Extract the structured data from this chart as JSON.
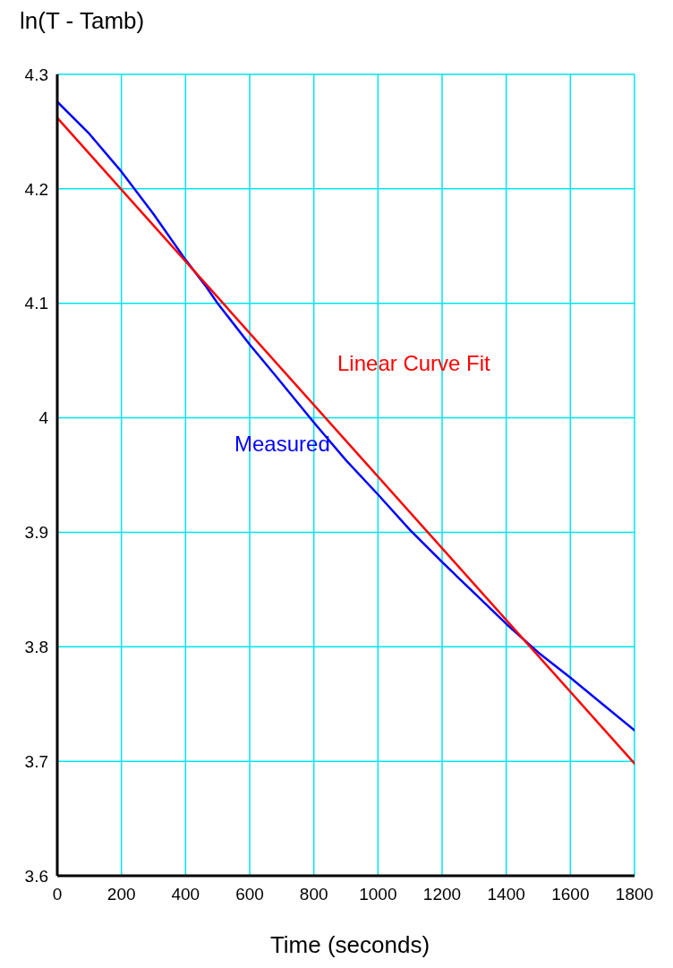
{
  "chart_data": {
    "type": "line",
    "ylabel": "ln(T - Tamb)",
    "xlabel": "Time (seconds)",
    "series": [
      {
        "name": "Measured",
        "color": "#0000ff",
        "x": [
          0,
          100,
          200,
          300,
          400,
          463,
          500,
          600,
          680,
          800,
          900,
          1000,
          1100,
          1200,
          1300,
          1400,
          1500,
          1600,
          1700,
          1800
        ],
        "values": [
          4.276,
          4.248,
          4.215,
          4.178,
          4.138,
          4.115,
          4.1,
          4.064,
          4.037,
          3.996,
          3.963,
          3.933,
          3.902,
          3.874,
          3.847,
          3.82,
          3.795,
          3.773,
          3.75,
          3.727
        ]
      },
      {
        "name": "Linear Curve Fit",
        "color": "#ff0000",
        "x": [
          0,
          1800
        ],
        "values": [
          4.262,
          3.698
        ]
      }
    ],
    "xlim": [
      0,
      1800
    ],
    "xticks": [
      0,
      200,
      400,
      600,
      800,
      1000,
      1200,
      1400,
      1600,
      1800
    ],
    "ylim": [
      3.6,
      4.3
    ],
    "yticks": [
      3.6,
      3.7,
      3.8,
      3.9,
      4,
      4.1,
      4.2,
      4.3
    ],
    "grid": true,
    "legend": false,
    "marker": "none",
    "line_style": "solid"
  }
}
